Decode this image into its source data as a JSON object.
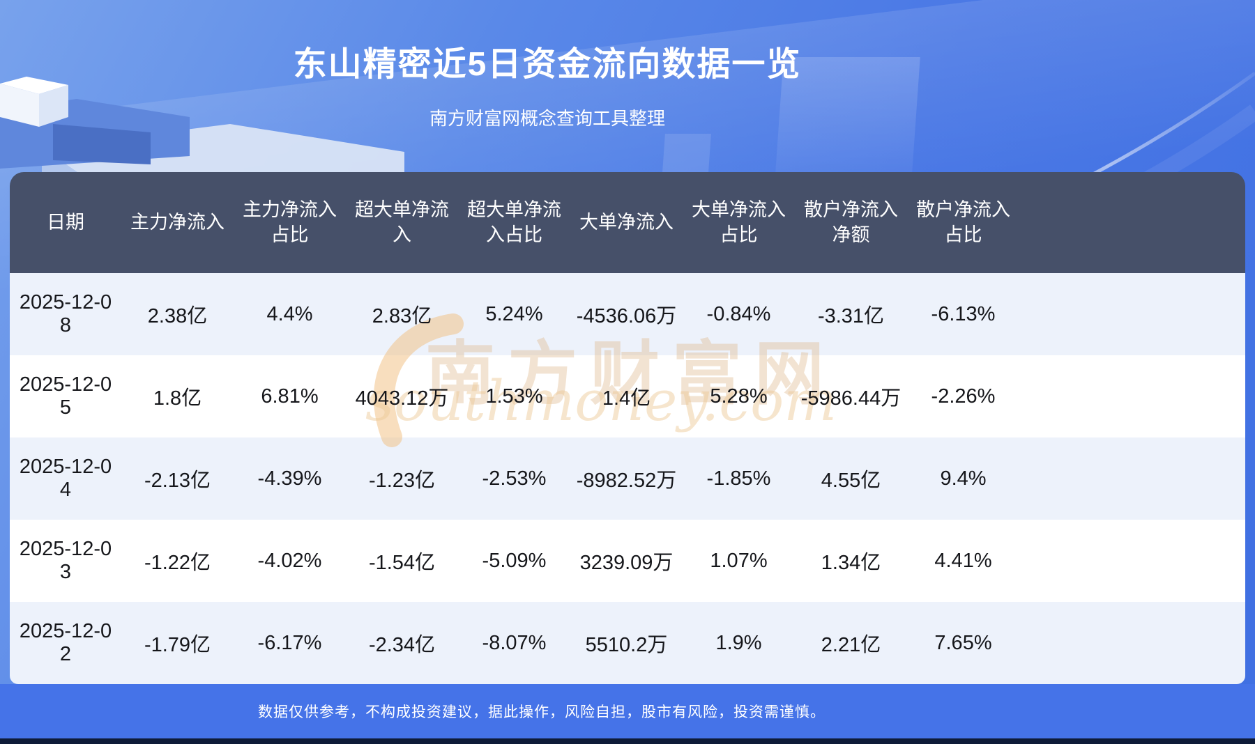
{
  "chart_data": {
    "type": "table",
    "title": "东山精密近5日资金流向数据一览",
    "subtitle": "南方财富网概念查询工具整理",
    "columns": [
      "日期",
      "主力净流入",
      "主力净流入占比",
      "超大单净流入",
      "超大单净流入占比",
      "大单净流入",
      "大单净流入占比",
      "散户净流入净额",
      "散户净流入占比"
    ],
    "rows": [
      [
        "2025-12-08",
        "2.38亿",
        "4.4%",
        "2.83亿",
        "5.24%",
        "-4536.06万",
        "-0.84%",
        "-3.31亿",
        "-6.13%"
      ],
      [
        "2025-12-05",
        "1.8亿",
        "6.81%",
        "4043.12万",
        "1.53%",
        "1.4亿",
        "5.28%",
        "-5986.44万",
        "-2.26%"
      ],
      [
        "2025-12-04",
        "-2.13亿",
        "-4.39%",
        "-1.23亿",
        "-2.53%",
        "-8982.52万",
        "-1.85%",
        "4.55亿",
        "9.4%"
      ],
      [
        "2025-12-03",
        "-1.22亿",
        "-4.02%",
        "-1.54亿",
        "-5.09%",
        "3239.09万",
        "1.07%",
        "1.34亿",
        "4.41%"
      ],
      [
        "2025-12-02",
        "-1.79亿",
        "-6.17%",
        "-2.34亿",
        "-8.07%",
        "5510.2万",
        "1.9%",
        "2.21亿",
        "7.65%"
      ]
    ]
  },
  "watermark": {
    "brand_cn": "南方财富网",
    "brand_en": "southmoney.com"
  },
  "footer": {
    "disclaimer": "数据仅供参考，不构成投资建议，据此操作，风险自担，股市有风险，投资需谨慎。"
  },
  "colors": {
    "background_top": "#78A2EC",
    "background_bottom": "#3F6FE2",
    "table_header_bg": "#465069",
    "row_bg": "#FFFFFF",
    "row_alt_bg": "#EDF2FB",
    "footer_band_bg": "#4573E8",
    "accent_gold": "#F0C36B",
    "title_color": "#FFFFFF"
  }
}
